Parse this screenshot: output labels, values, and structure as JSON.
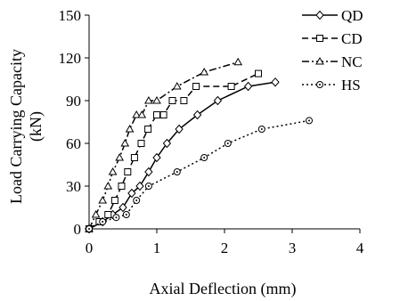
{
  "chart_data": {
    "type": "line",
    "xlabel": "Axial Deflection (mm)",
    "ylabel": [
      "Load Carrying Capacity",
      "(kN)"
    ],
    "xlim": [
      0,
      4
    ],
    "ylim": [
      0,
      150
    ],
    "xticks": [
      "0",
      "1",
      "2",
      "3",
      "4"
    ],
    "yticks": [
      "0",
      "30",
      "60",
      "90",
      "120",
      "150"
    ],
    "grid": false,
    "legend_position": "top-right",
    "series": [
      {
        "name": "QD",
        "marker": "diamond",
        "dash": "solid",
        "x": [
          0,
          0.2,
          0.35,
          0.5,
          0.63,
          0.75,
          0.88,
          1.0,
          1.15,
          1.33,
          1.6,
          1.9,
          2.35,
          2.75
        ],
        "y": [
          0,
          5,
          10,
          15,
          25,
          30,
          40,
          50,
          60,
          70,
          80,
          90,
          100,
          103
        ]
      },
      {
        "name": "CD",
        "marker": "square",
        "dash": "dash",
        "x": [
          0,
          0.15,
          0.28,
          0.38,
          0.48,
          0.57,
          0.67,
          0.77,
          0.87,
          1.0,
          1.1,
          1.23,
          1.4,
          1.58,
          2.1,
          2.5
        ],
        "y": [
          0,
          5,
          10,
          20,
          30,
          40,
          50,
          60,
          70,
          80,
          80,
          90,
          90,
          100,
          100,
          109
        ]
      },
      {
        "name": "NC",
        "marker": "triangle",
        "dash": "dashdot",
        "x": [
          0,
          0.1,
          0.2,
          0.28,
          0.35,
          0.45,
          0.53,
          0.6,
          0.7,
          0.78,
          0.88,
          1.0,
          1.3,
          1.7,
          2.2
        ],
        "y": [
          0,
          10,
          20,
          30,
          40,
          50,
          60,
          70,
          80,
          80,
          90,
          90,
          100,
          110,
          117
        ]
      },
      {
        "name": "HS",
        "marker": "circle",
        "dash": "dot",
        "x": [
          0,
          0.2,
          0.4,
          0.55,
          0.7,
          0.88,
          1.3,
          1.7,
          2.05,
          2.55,
          3.25
        ],
        "y": [
          0,
          5,
          8,
          10,
          20,
          30,
          40,
          50,
          60,
          70,
          76
        ]
      }
    ]
  }
}
